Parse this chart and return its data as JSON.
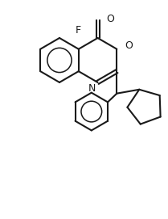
{
  "bg_color": "#ffffff",
  "line_color": "#1a1a1a",
  "line_width": 1.5,
  "fig_width": 2.09,
  "fig_height": 2.71,
  "dpi": 100,
  "font_size": 9,
  "xlim": [
    0,
    10
  ],
  "ylim": [
    0,
    13
  ]
}
